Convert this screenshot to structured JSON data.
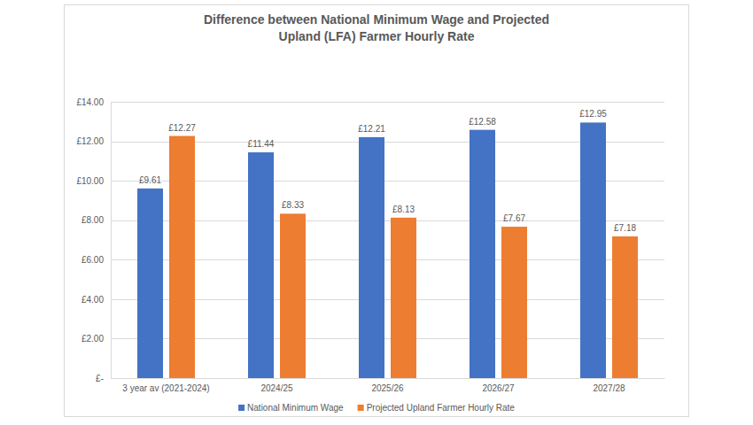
{
  "chart_data": {
    "type": "bar",
    "title": "Difference between National Minimum Wage and Projected Upland (LFA) Farmer Hourly Rate",
    "categories": [
      "3 year av (2021-2024)",
      "2024/25",
      "2025/26",
      "2026/27",
      "2027/28"
    ],
    "series": [
      {
        "name": "National Minimum Wage",
        "color": "#4472c4",
        "values": [
          9.61,
          11.44,
          12.21,
          12.58,
          12.95
        ],
        "value_labels": [
          "£9.61",
          "£11.44",
          "£12.21",
          "£12.58",
          "£12.95"
        ]
      },
      {
        "name": "Projected Upland Farmer Hourly Rate",
        "color": "#ed7d31",
        "values": [
          12.27,
          8.33,
          8.13,
          7.67,
          7.18
        ],
        "value_labels": [
          "£12.27",
          "£8.33",
          "£8.13",
          "£7.67",
          "£7.18"
        ]
      }
    ],
    "ylim": [
      0,
      14
    ],
    "yticks": [
      {
        "value": 0,
        "label": "£-"
      },
      {
        "value": 2,
        "label": "£2.00"
      },
      {
        "value": 4,
        "label": "£4.00"
      },
      {
        "value": 6,
        "label": "£6.00"
      },
      {
        "value": 8,
        "label": "£8.00"
      },
      {
        "value": 10,
        "label": "£10.00"
      },
      {
        "value": 12,
        "label": "£12.00"
      },
      {
        "value": 14,
        "label": "£14.00"
      }
    ],
    "grid": true,
    "data_labels": true,
    "legend": "bottom"
  }
}
